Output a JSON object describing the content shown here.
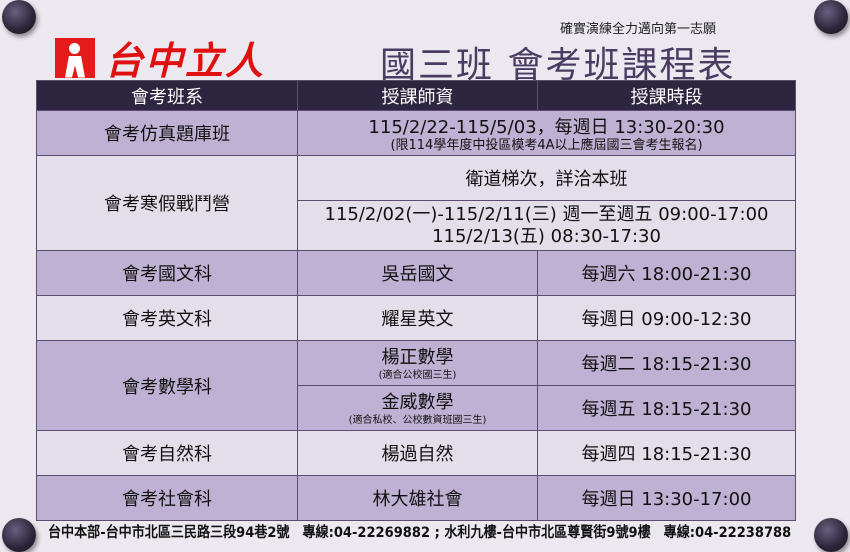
{
  "logo": {
    "text": "台中立人"
  },
  "slogan": "確實演練全力邁向第一志願",
  "title": "國三班 會考班課程表",
  "headers": [
    "會考班系",
    "授課師資",
    "授課時段"
  ],
  "rows": {
    "r1": {
      "name": "會考仿真題庫班",
      "line1": "115/2/22-115/5/03，每週日 13:30-20:30",
      "line2": "(限114學年度中投區模考4A以上應屆國三會考生報名)"
    },
    "r2": {
      "name": "會考寒假戰鬥營",
      "line1": "衛道梯次，詳洽本班",
      "line2": "115/2/02(一)-115/2/11(三) 週一至週五 09:00-17:00",
      "line3": "115/2/13(五) 08:30-17:30"
    },
    "r3": {
      "name": "會考國文科",
      "teacher": "吳岳國文",
      "time": "每週六 18:00-21:30"
    },
    "r4": {
      "name": "會考英文科",
      "teacher": "耀星英文",
      "time": "每週日 09:00-12:30"
    },
    "r5": {
      "name": "會考數學科",
      "teacher1": "楊正數學",
      "note1": "(適合公校國三生)",
      "time1": "每週二 18:15-21:30",
      "teacher2": "金威數學",
      "note2": "(適合私校、公校數資班國三生)",
      "time2": "每週五 18:15-21:30"
    },
    "r6": {
      "name": "會考自然科",
      "teacher": "楊過自然",
      "time": "每週四 18:15-21:30"
    },
    "r7": {
      "name": "會考社會科",
      "teacher": "林大雄社會",
      "time": "每週日 13:30-17:00"
    }
  },
  "footer": "台中本部-台中市北區三民路三段94巷2號　專線:04-22269882 ; 水利九樓-台中市北區尊賢街9號9樓　專線:04-22238788",
  "colors": {
    "header": "#2e2540",
    "row_purple": "#bfb1d3",
    "row_light": "#e3dfea",
    "logo_red": "#e01010"
  }
}
